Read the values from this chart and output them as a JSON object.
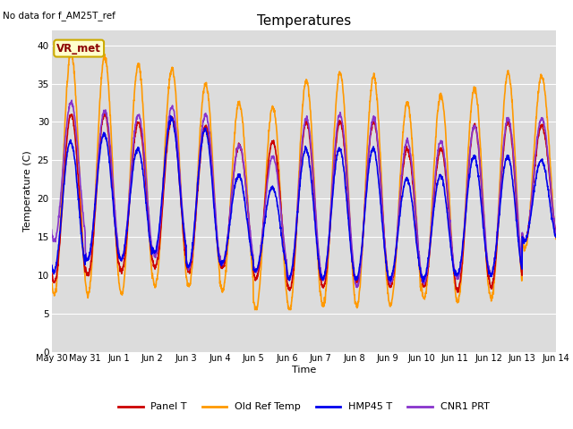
{
  "title": "Temperatures",
  "xlabel": "Time",
  "ylabel": "Temperature (C)",
  "ylim": [
    0,
    42
  ],
  "yticks": [
    0,
    5,
    10,
    15,
    20,
    25,
    30,
    35,
    40
  ],
  "background_color": "#dcdcdc",
  "fig_background": "#ffffff",
  "no_data_text": "No data for f_AM25T_ref",
  "vr_met_label": "VR_met",
  "legend": [
    {
      "label": "Panel T",
      "color": "#cc0000",
      "lw": 1.2
    },
    {
      "label": "Old Ref Temp",
      "color": "#ff9900",
      "lw": 1.2
    },
    {
      "label": "HMP45 T",
      "color": "#0000ee",
      "lw": 1.2
    },
    {
      "label": "CNR1 PRT",
      "color": "#8833cc",
      "lw": 1.2
    }
  ],
  "num_points": 2000
}
